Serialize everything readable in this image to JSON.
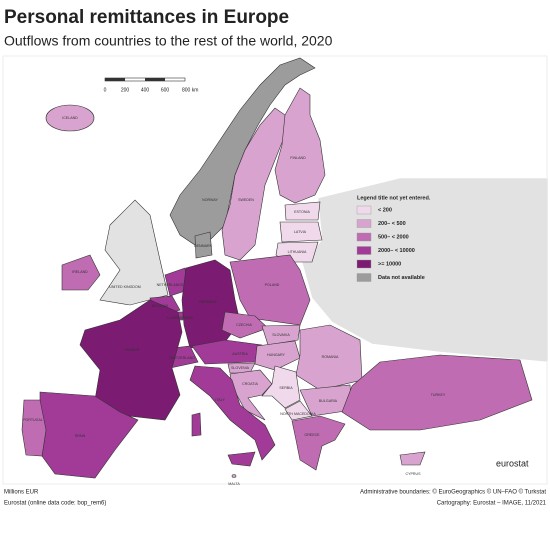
{
  "title": "Personal remittances in Europe",
  "subtitle": "Outflows from countries to the rest of the world, 2020",
  "scale_bar": {
    "labels": [
      "0",
      "200",
      "400",
      "600",
      "800 km"
    ]
  },
  "legend": {
    "title": "Legend title not yet entered.",
    "items": [
      {
        "label": "< 200",
        "color": "#f1d9ec"
      },
      {
        "label": "200– < 500",
        "color": "#d8a3cf"
      },
      {
        "label": "500– < 2000",
        "color": "#c06cb2"
      },
      {
        "label": "2000– < 10000",
        "color": "#a13b97"
      },
      {
        "label": ">= 10000",
        "color": "#7c1b72"
      },
      {
        "label": "Data not available",
        "color": "#9c9c9c"
      }
    ]
  },
  "countries": [
    {
      "name": "ICELAND",
      "color": "#d8a3cf"
    },
    {
      "name": "NORWAY",
      "color": "#9c9c9c"
    },
    {
      "name": "SWEDEN",
      "color": "#d8a3cf"
    },
    {
      "name": "FINLAND",
      "color": "#d8a3cf"
    },
    {
      "name": "ESTONIA",
      "color": "#f1d9ec"
    },
    {
      "name": "LATVIA",
      "color": "#f1d9ec"
    },
    {
      "name": "LITHUANIA",
      "color": "#f1d9ec"
    },
    {
      "name": "DENMARK",
      "color": "#9c9c9c"
    },
    {
      "name": "IRELAND",
      "color": "#c06cb2"
    },
    {
      "name": "UNITED KINGDOM",
      "color": "#e2e2e2"
    },
    {
      "name": "NETHERLANDS",
      "color": "#a13b97"
    },
    {
      "name": "BELGIUM",
      "color": "#a13b97"
    },
    {
      "name": "LUXEMBOURG",
      "color": "#a13b97"
    },
    {
      "name": "GERMANY",
      "color": "#7c1b72"
    },
    {
      "name": "POLAND",
      "color": "#c06cb2"
    },
    {
      "name": "CZECHIA",
      "color": "#c06cb2"
    },
    {
      "name": "SLOVAKIA",
      "color": "#d8a3cf"
    },
    {
      "name": "AUSTRIA",
      "color": "#a13b97"
    },
    {
      "name": "SWITZERLAND",
      "color": "#a13b97"
    },
    {
      "name": "FRANCE",
      "color": "#7c1b72"
    },
    {
      "name": "HUNGARY",
      "color": "#d8a3cf"
    },
    {
      "name": "ROMANIA",
      "color": "#d8a3cf"
    },
    {
      "name": "SLOVENIA",
      "color": "#d8a3cf"
    },
    {
      "name": "CROATIA",
      "color": "#d8a3cf"
    },
    {
      "name": "SERBIA",
      "color": "#f1d9ec"
    },
    {
      "name": "BULGARIA",
      "color": "#d8a3cf"
    },
    {
      "name": "NORTH MACEDONIA",
      "color": "#f1d9ec"
    },
    {
      "name": "GREECE",
      "color": "#c06cb2"
    },
    {
      "name": "TURKEY",
      "color": "#c06cb2"
    },
    {
      "name": "ITALY",
      "color": "#a13b97"
    },
    {
      "name": "SPAIN",
      "color": "#a13b97"
    },
    {
      "name": "PORTUGAL",
      "color": "#c06cb2"
    },
    {
      "name": "CYPRUS",
      "color": "#d8a3cf"
    },
    {
      "name": "MALTA",
      "color": "#d8a3cf"
    }
  ],
  "logo": "eurostat",
  "footer": {
    "left": [
      "Millions EUR",
      "Eurostat (online data code: bop_rem6)"
    ],
    "right": [
      "Administrative boundaries: © EuroGeographics © UN–FAO © Turkstat",
      "Cartography: Eurostat – IMAGE, 11/2021"
    ]
  }
}
